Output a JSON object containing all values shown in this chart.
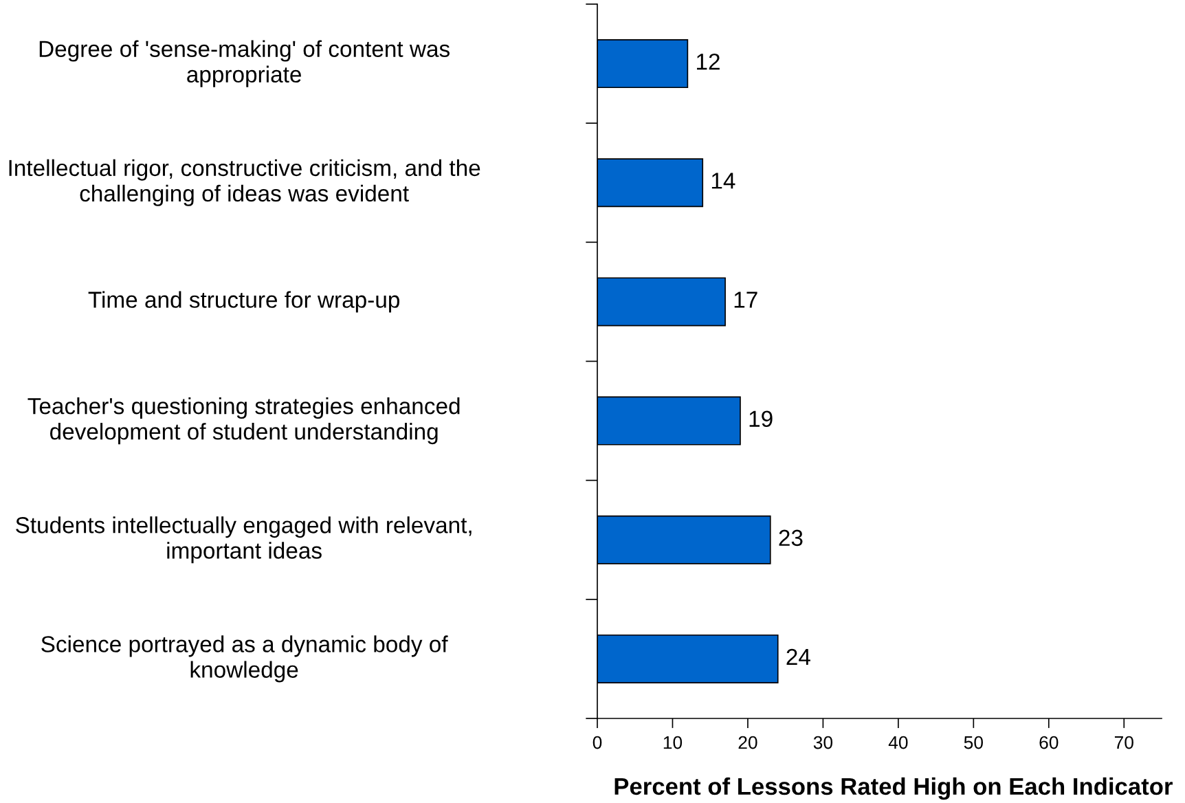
{
  "chart_data": {
    "type": "bar",
    "orientation": "horizontal",
    "xlabel": "Percent of Lessons Rated High on Each Indicator",
    "categories": [
      "Degree of 'sense-making' of content was\nappropriate",
      "Intellectual rigor, constructive criticism, and the\nchallenging of ideas was evident",
      "Time and structure for wrap-up",
      "Teacher's questioning strategies enhanced\ndevelopment of student understanding",
      "Students intellectually engaged with relevant,\nimportant ideas",
      "Science portrayed as a dynamic body of\nknowledge"
    ],
    "values": [
      12,
      14,
      17,
      19,
      23,
      24
    ],
    "color": "#0066cc",
    "xlim": [
      0,
      75
    ],
    "xticks": [
      0,
      10,
      20,
      30,
      40,
      50,
      60,
      70
    ],
    "data_labels": true,
    "grid": false,
    "legend": false
  }
}
